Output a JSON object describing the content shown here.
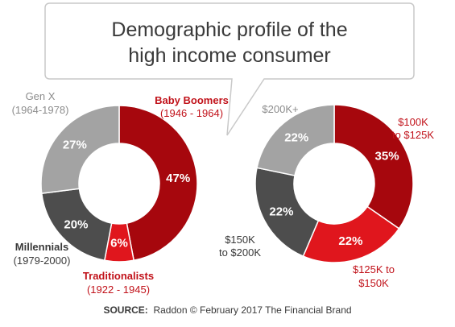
{
  "title": {
    "line1": "Demographic profile of the",
    "line2": "high income consumer"
  },
  "source": {
    "label": "SOURCE:",
    "text": "Raddon © February 2017 The Financial Brand"
  },
  "colors": {
    "dark_red": "#a6070d",
    "red": "#e0161d",
    "dark_gray": "#4d4d4d",
    "light_gray": "#a3a3a3",
    "label_gray": "#8c8c8c",
    "label_dark": "#3a3a3a",
    "label_red": "#c1121a"
  },
  "chart_data": [
    {
      "type": "pie",
      "donut": true,
      "title": "",
      "slices": [
        {
          "name_line1": "Baby Boomers",
          "name_line2": "(1946 - 1964)",
          "value": 47,
          "label": "47%",
          "color": "#a6070d",
          "name_color": "#c1121a",
          "bold": true
        },
        {
          "name_line1": "Traditionalists",
          "name_line2": "(1922 - 1945)",
          "value": 6,
          "label": "6%",
          "color": "#e0161d",
          "name_color": "#c1121a",
          "bold": true
        },
        {
          "name_line1": "Millennials",
          "name_line2": "(1979-2000)",
          "value": 20,
          "label": "20%",
          "color": "#4d4d4d",
          "name_color": "#3a3a3a",
          "bold": true
        },
        {
          "name_line1": "Gen X",
          "name_line2": "(1964-1978)",
          "value": 27,
          "label": "27%",
          "color": "#a3a3a3",
          "name_color": "#8c8c8c",
          "bold": false
        }
      ]
    },
    {
      "type": "pie",
      "donut": true,
      "title": "",
      "slices": [
        {
          "name_line1": "$100K",
          "name_line2": "to $125K",
          "value": 35,
          "label": "35%",
          "color": "#a6070d",
          "name_color": "#c1121a",
          "bold": false
        },
        {
          "name_line1": "$125K to",
          "name_line2": "$150K",
          "value": 22,
          "label": "22%",
          "color": "#e0161d",
          "name_color": "#c1121a",
          "bold": false
        },
        {
          "name_line1": "$150K",
          "name_line2": "to $200K",
          "value": 22,
          "label": "22%",
          "color": "#4d4d4d",
          "name_color": "#3a3a3a",
          "bold": false
        },
        {
          "name_line1": "$200K+",
          "name_line2": "",
          "value": 22,
          "label": "22%",
          "color": "#a3a3a3",
          "name_color": "#8c8c8c",
          "bold": false
        }
      ]
    }
  ]
}
